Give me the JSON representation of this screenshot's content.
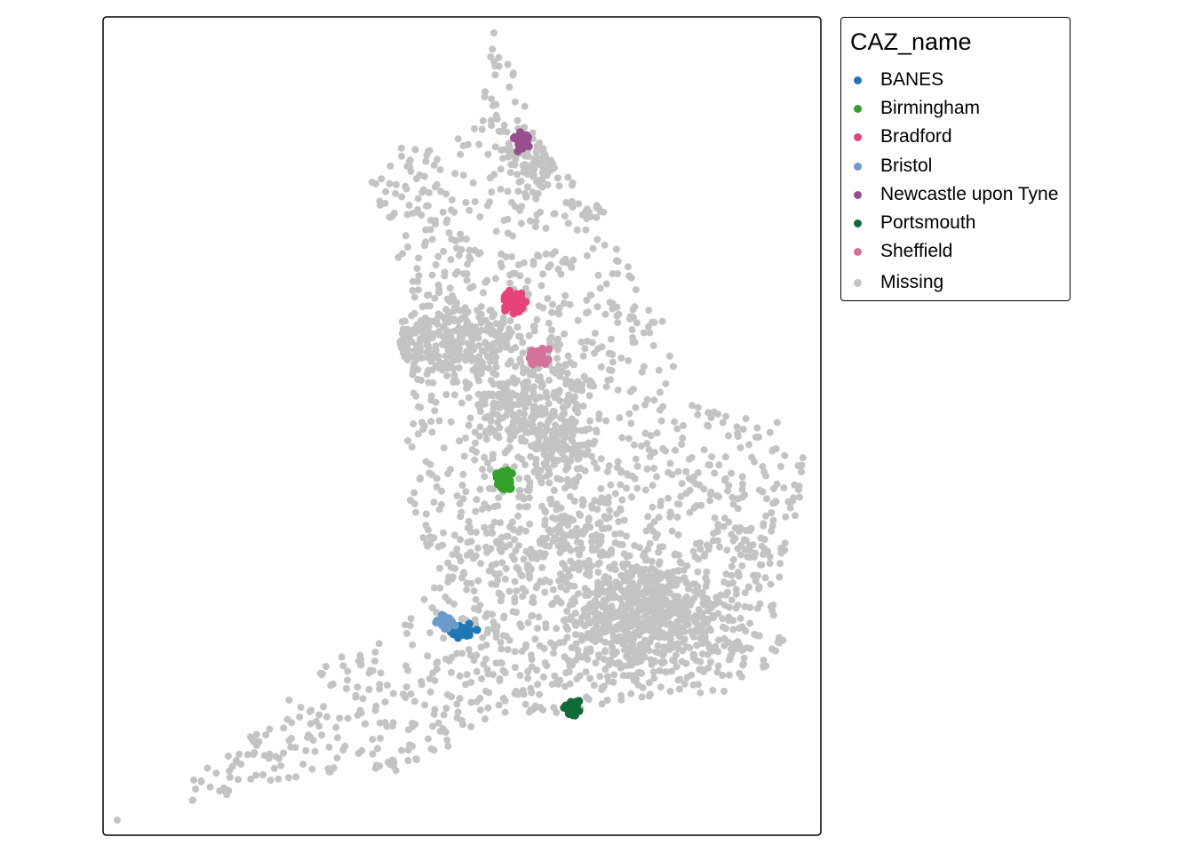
{
  "legend": {
    "title": "CAZ_name",
    "items": [
      {
        "label": "BANES",
        "color": "#1F78B4"
      },
      {
        "label": "Birmingham",
        "color": "#33A02C"
      },
      {
        "label": "Bradford",
        "color": "#E7427A"
      },
      {
        "label": "Bristol",
        "color": "#6A9BCB"
      },
      {
        "label": "Newcastle upon Tyne",
        "color": "#984E8E"
      },
      {
        "label": "Portsmouth",
        "color": "#0F6B37"
      },
      {
        "label": "Sheffield",
        "color": "#D4729B"
      },
      {
        "label": "Missing",
        "color": "#C3C3C3"
      }
    ]
  },
  "map": {
    "missing_color": "#C3C3C3"
  }
}
